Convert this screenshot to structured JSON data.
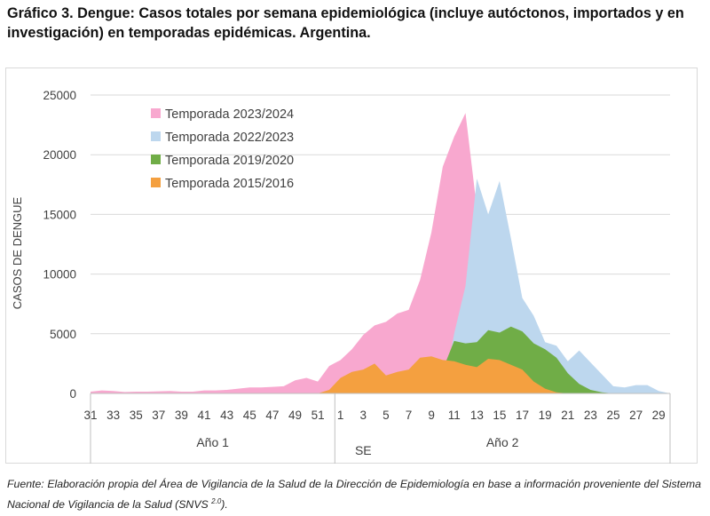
{
  "title": "Gráfico 3. Dengue: Casos totales por semana epidemiológica (incluye autóctonos, importados y en investigación) en temporadas epidémicas. Argentina.",
  "footer": {
    "text": "Fuente: Elaboración propia del Área de Vigilancia de la Salud de la Dirección de Epidemiología en base a información proveniente del Sistema Nacional de Vigilancia de la Salud (SNVS",
    "sup": "2.0",
    "tail": ")."
  },
  "chart_data": {
    "type": "area",
    "ylabel": "CASOS DE DENGUE",
    "xlabel": "SE",
    "ylim": [
      0,
      25000
    ],
    "yticks": [
      0,
      5000,
      10000,
      15000,
      20000,
      25000
    ],
    "x_tick_labels": [
      "31",
      "33",
      "35",
      "37",
      "39",
      "41",
      "43",
      "45",
      "47",
      "49",
      "51",
      "1",
      "3",
      "5",
      "7",
      "9",
      "11",
      "13",
      "15",
      "17",
      "19",
      "21",
      "23",
      "25",
      "27",
      "29"
    ],
    "groups": [
      "Año 1",
      "Año 2"
    ],
    "weeks": [
      31,
      32,
      33,
      34,
      35,
      36,
      37,
      38,
      39,
      40,
      41,
      42,
      43,
      44,
      45,
      46,
      47,
      48,
      49,
      50,
      51,
      52,
      1,
      2,
      3,
      4,
      5,
      6,
      7,
      8,
      9,
      10,
      11,
      12,
      13,
      14,
      15,
      16,
      17,
      18,
      19,
      20,
      21,
      22,
      23,
      24,
      25,
      26,
      27,
      28,
      29,
      30
    ],
    "series": [
      {
        "name": "Temporada 2023/2024",
        "color": "#f8a8cf",
        "values": [
          150,
          250,
          200,
          120,
          150,
          150,
          180,
          200,
          150,
          150,
          250,
          250,
          300,
          400,
          500,
          500,
          550,
          600,
          1100,
          1300,
          1000,
          2300,
          2800,
          3700,
          4900,
          5700,
          6000,
          6700,
          7000,
          9500,
          13500,
          19000,
          21500,
          23500,
          15500,
          null,
          null,
          null,
          null,
          null,
          null,
          null,
          null,
          null,
          null,
          null,
          null,
          null,
          null,
          null,
          null,
          null
        ]
      },
      {
        "name": "Temporada 2022/2023",
        "color": "#bdd7ee",
        "values": [
          0,
          0,
          0,
          0,
          0,
          0,
          0,
          0,
          0,
          0,
          0,
          0,
          0,
          0,
          0,
          0,
          0,
          0,
          0,
          0,
          0,
          0,
          0,
          0,
          0,
          0,
          0,
          0,
          0,
          0,
          0,
          0,
          5000,
          9000,
          18000,
          15000,
          17800,
          13000,
          8000,
          6500,
          4300,
          4000,
          2700,
          3600,
          2600,
          1600,
          600,
          500,
          700,
          700,
          200,
          0
        ]
      },
      {
        "name": "Temporada 2019/2020",
        "color": "#70ad47",
        "values": [
          0,
          0,
          0,
          0,
          0,
          0,
          0,
          0,
          0,
          0,
          0,
          0,
          0,
          0,
          0,
          0,
          0,
          0,
          0,
          0,
          0,
          0,
          50,
          100,
          150,
          200,
          300,
          400,
          500,
          800,
          1200,
          2000,
          4400,
          4200,
          4300,
          5300,
          5100,
          5600,
          5200,
          4200,
          3700,
          3000,
          1700,
          800,
          300,
          100,
          0,
          0,
          0,
          0,
          0,
          0
        ]
      },
      {
        "name": "Temporada 2015/2016",
        "color": "#f4a040",
        "values": [
          0,
          0,
          0,
          0,
          0,
          0,
          0,
          0,
          0,
          0,
          0,
          0,
          0,
          0,
          0,
          0,
          0,
          0,
          0,
          0,
          0,
          300,
          1300,
          1800,
          2000,
          2500,
          1500,
          1800,
          2000,
          3000,
          3100,
          2800,
          2700,
          2400,
          2200,
          2900,
          2800,
          2400,
          2000,
          1000,
          400,
          100,
          0,
          0,
          0,
          0,
          0,
          0,
          0,
          0,
          0,
          0
        ]
      }
    ]
  }
}
